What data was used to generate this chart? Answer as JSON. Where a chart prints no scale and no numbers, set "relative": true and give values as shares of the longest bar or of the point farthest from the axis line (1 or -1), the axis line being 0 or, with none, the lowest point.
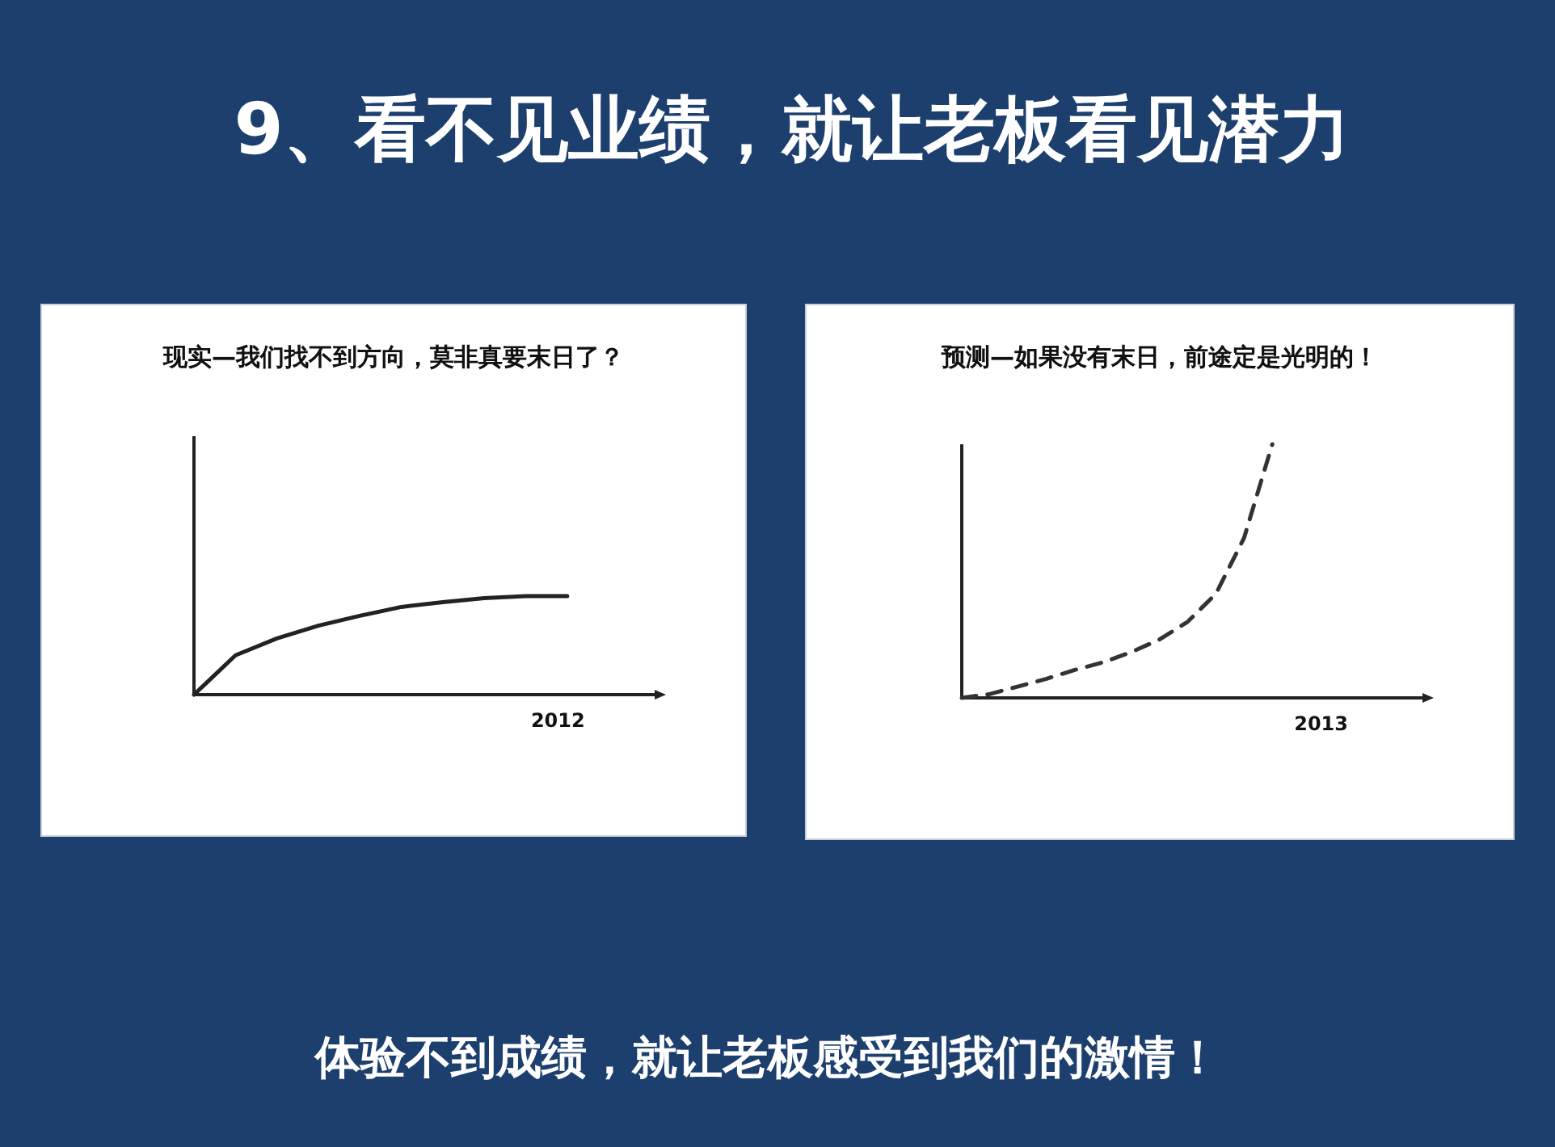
{
  "chart_data": [
    {
      "type": "other",
      "title": "9、看不见业绩，就让老板看见潜力",
      "annotations": [
        "体验不到成绩，就让老板感受到我们的激情！"
      ]
    },
    {
      "type": "line",
      "title": "现实—我们找不到方向，莫非真要末日了？",
      "relative": true,
      "annotations": [
        "2012"
      ],
      "line_style": "solid",
      "marker": "none",
      "categories": [
        null,
        null,
        null,
        null,
        null,
        null,
        null,
        null,
        null,
        null
      ],
      "series": [
        {
          "color": "#222222",
          "values": [
            0,
            0.4,
            0.57,
            0.7,
            0.8,
            0.89,
            0.94,
            0.98,
            1,
            1
          ]
        }
      ]
    },
    {
      "type": "line",
      "title": "预测—如果没有末日，前途定是光明的！",
      "relative": true,
      "annotations": [
        "2013"
      ],
      "line_style": "dashed",
      "marker": "none",
      "categories": [
        null,
        null,
        null,
        null,
        null,
        null,
        null,
        null,
        null,
        null,
        null,
        null
      ],
      "series": [
        {
          "color": "#333333",
          "values": [
            0,
            0.015,
            0.045,
            0.075,
            0.11,
            0.14,
            0.18,
            0.23,
            0.3,
            0.41,
            0.63,
            1
          ]
        }
      ]
    }
  ]
}
